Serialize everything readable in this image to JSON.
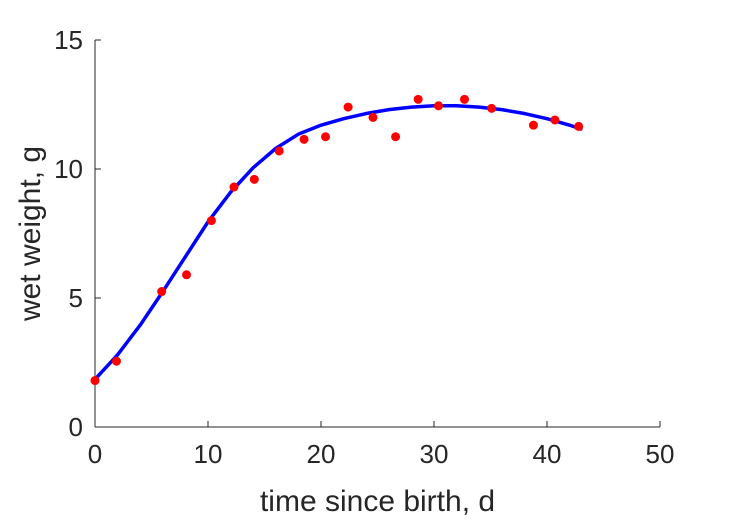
{
  "chart_data": {
    "type": "scatter",
    "xlabel": "time since birth, d",
    "ylabel": "wet weight, g",
    "xlim": [
      0,
      50
    ],
    "ylim": [
      0,
      15
    ],
    "xticks": [
      "0",
      "10",
      "20",
      "30",
      "40",
      "50"
    ],
    "yticks": [
      "0",
      "5",
      "10",
      "15"
    ],
    "grid": false,
    "colors": {
      "points": "#ff0000",
      "curve": "#0000ff",
      "axis": "#262626"
    },
    "series": [
      {
        "type": "scatter",
        "x": [
          0,
          1.9,
          5.9,
          8.1,
          10.3,
          12.3,
          14.1,
          16.3,
          18.5,
          20.4,
          22.4,
          24.6,
          26.6,
          28.6,
          30.4,
          32.7,
          35.1,
          38.8,
          40.7,
          42.8
        ],
        "y": [
          1.8,
          2.55,
          5.25,
          5.9,
          8.0,
          9.3,
          9.6,
          10.7,
          11.15,
          11.25,
          12.4,
          12.0,
          11.25,
          12.7,
          12.45,
          12.7,
          12.35,
          11.7,
          11.9,
          11.65
        ]
      },
      {
        "type": "line",
        "x": [
          0,
          2,
          4,
          6,
          8,
          10,
          12,
          14,
          16,
          18,
          20,
          22,
          24,
          26,
          28,
          30,
          32,
          34,
          36,
          38,
          40,
          42,
          43
        ],
        "y": [
          1.85,
          2.8,
          3.95,
          5.25,
          6.6,
          7.95,
          9.1,
          10.05,
          10.8,
          11.35,
          11.7,
          11.95,
          12.15,
          12.3,
          12.4,
          12.45,
          12.45,
          12.4,
          12.3,
          12.15,
          11.95,
          11.7,
          11.55
        ]
      }
    ]
  }
}
